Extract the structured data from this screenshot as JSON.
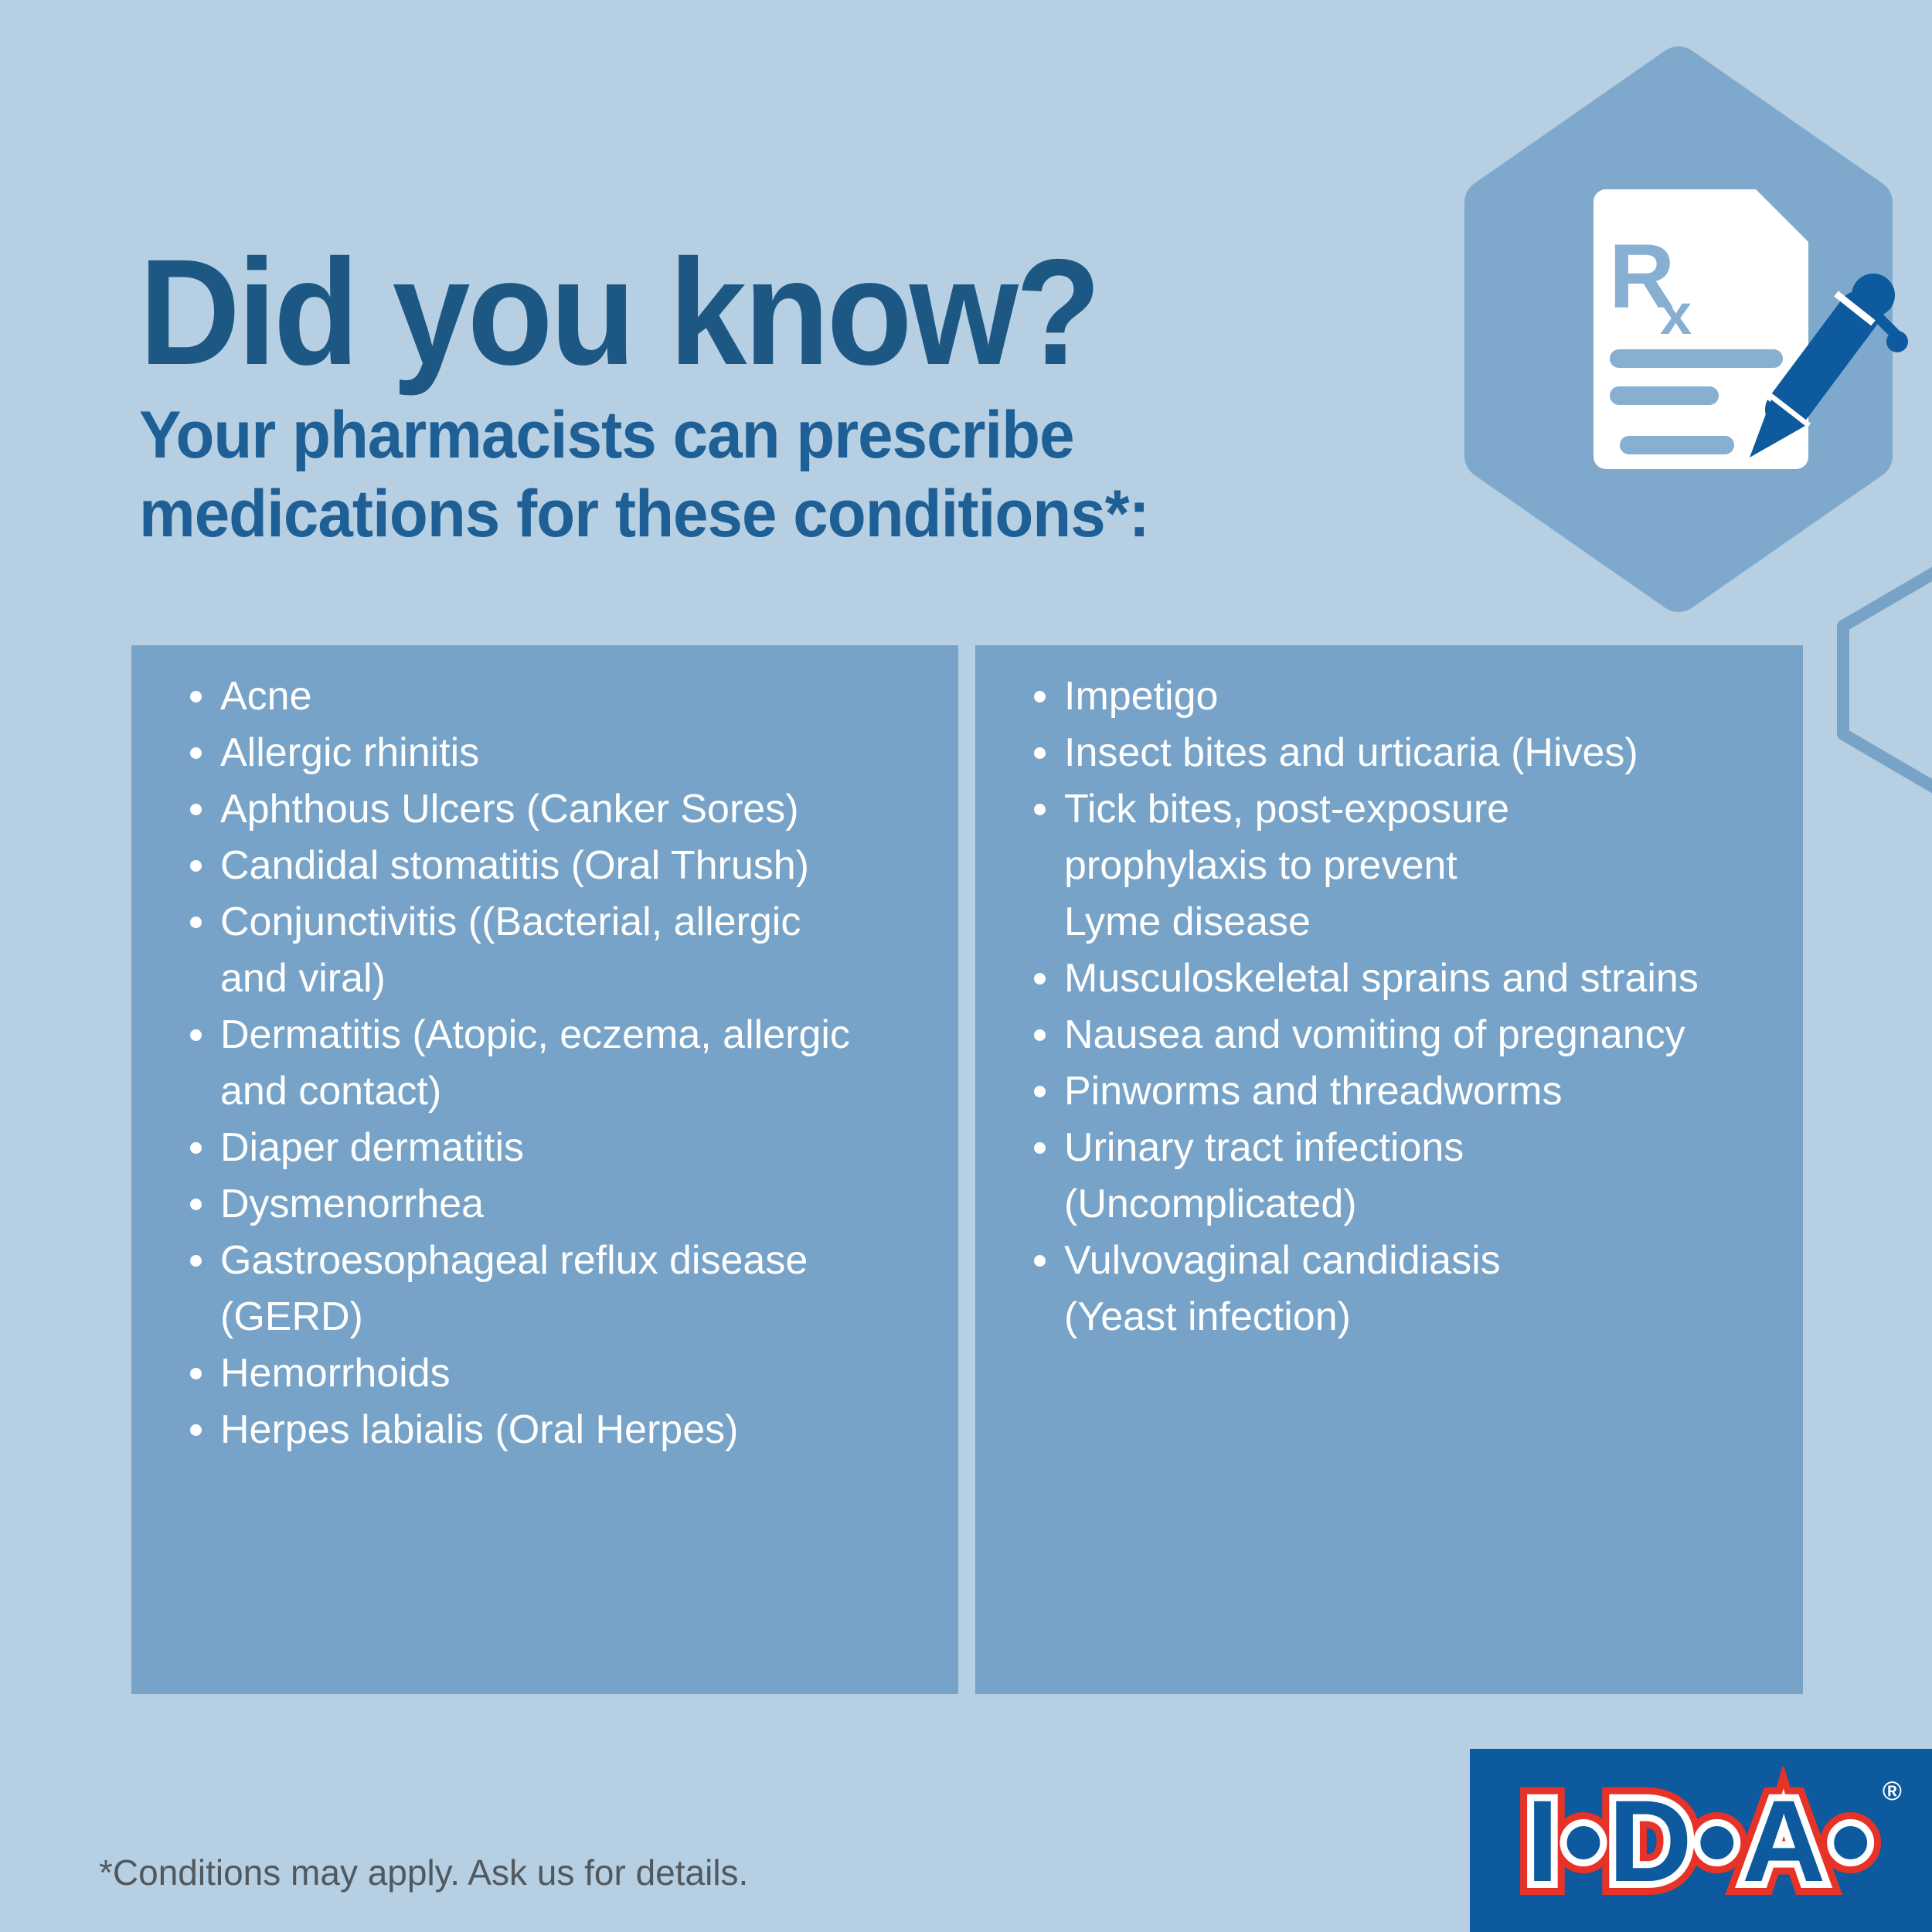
{
  "title": {
    "text": "Did you know?"
  },
  "subtitle": {
    "line1": "Your pharmacists can prescribe",
    "line2": "medications for these conditions*:"
  },
  "panels": {
    "left": {
      "items": [
        {
          "lines": [
            "Acne"
          ]
        },
        {
          "lines": [
            "Allergic rhinitis"
          ]
        },
        {
          "lines": [
            "Aphthous Ulcers (Canker Sores)"
          ]
        },
        {
          "lines": [
            "Candidal stomatitis (Oral Thrush)"
          ]
        },
        {
          "lines": [
            "Conjunctivitis ((Bacterial, allergic",
            "and viral)"
          ]
        },
        {
          "lines": [
            "Dermatitis (Atopic, eczema, allergic",
            "and contact)"
          ]
        },
        {
          "lines": [
            "Diaper dermatitis"
          ]
        },
        {
          "lines": [
            "Dysmenorrhea"
          ]
        },
        {
          "lines": [
            "Gastroesophageal reflux disease",
            "(GERD)"
          ]
        },
        {
          "lines": [
            "Hemorrhoids"
          ]
        },
        {
          "lines": [
            "Herpes labialis (Oral Herpes)"
          ]
        }
      ]
    },
    "right": {
      "items": [
        {
          "lines": [
            "Impetigo"
          ]
        },
        {
          "lines": [
            "Insect bites and urticaria (Hives)"
          ]
        },
        {
          "lines": [
            "Tick bites, post-exposure",
            "prophylaxis to prevent",
            "Lyme disease"
          ]
        },
        {
          "lines": [
            "Musculoskeletal sprains and strains"
          ]
        },
        {
          "lines": [
            "Nausea and vomiting of pregnancy"
          ]
        },
        {
          "lines": [
            "Pinworms and threadworms"
          ]
        },
        {
          "lines": [
            "Urinary tract infections",
            "(Uncomplicated)"
          ]
        },
        {
          "lines": [
            "Vulvovaginal candidiasis",
            "(Yeast infection)"
          ]
        }
      ]
    }
  },
  "footnote": {
    "text": "*Conditions may apply. Ask us for details."
  },
  "logo": {
    "text": "I•D•A•",
    "reg": "®"
  },
  "icons": {
    "hexagon_icon": "rx-prescription-document-with-pen",
    "rx_symbol": "Rx"
  },
  "colors": {
    "page_bg": "#b6cfe2",
    "panel_bg": "#76a3c7",
    "title_blue": "#1d5884",
    "subtitle_blue": "#1e6095",
    "list_text": "#ffffff",
    "footnote_gray": "#51585e",
    "hex_fill": "#7fa9cc",
    "hex_outline": "#78a3c6",
    "doc_white": "#ffffff",
    "doc_accent": "#86afd2",
    "pen_blue": "#0e5a9e",
    "logo_box_blue": "#0e5a9e",
    "logo_red": "#e73228",
    "logo_white": "#ffffff"
  }
}
